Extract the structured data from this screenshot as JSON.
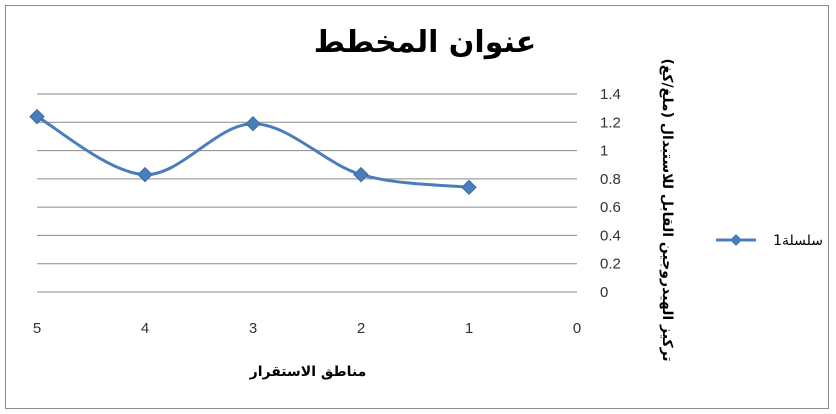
{
  "chart_data": {
    "type": "line",
    "title": "عنوان المخطط",
    "xlabel": "مناطق الاستقرار",
    "ylabel": "تركيز الهيدروجين القابل للاستبدال (ملغ/كغ)",
    "x_ticks": [
      "5",
      "4",
      "3",
      "2",
      "1",
      "0"
    ],
    "x_reversed": true,
    "xlim": [
      0,
      5
    ],
    "ylim": [
      0,
      1.4
    ],
    "y_ticks": [
      "1.4",
      "1.2",
      "1",
      "0.8",
      "0.6",
      "0.4",
      "0.2",
      "0"
    ],
    "grid": true,
    "smooth": true,
    "legend_position": "right",
    "series": [
      {
        "name": "سلسلة1",
        "color": "#4a7ebb",
        "marker": "diamond",
        "x": [
          1,
          2,
          3,
          4,
          5
        ],
        "y": [
          0.74,
          0.83,
          1.19,
          0.83,
          1.24
        ]
      }
    ]
  }
}
